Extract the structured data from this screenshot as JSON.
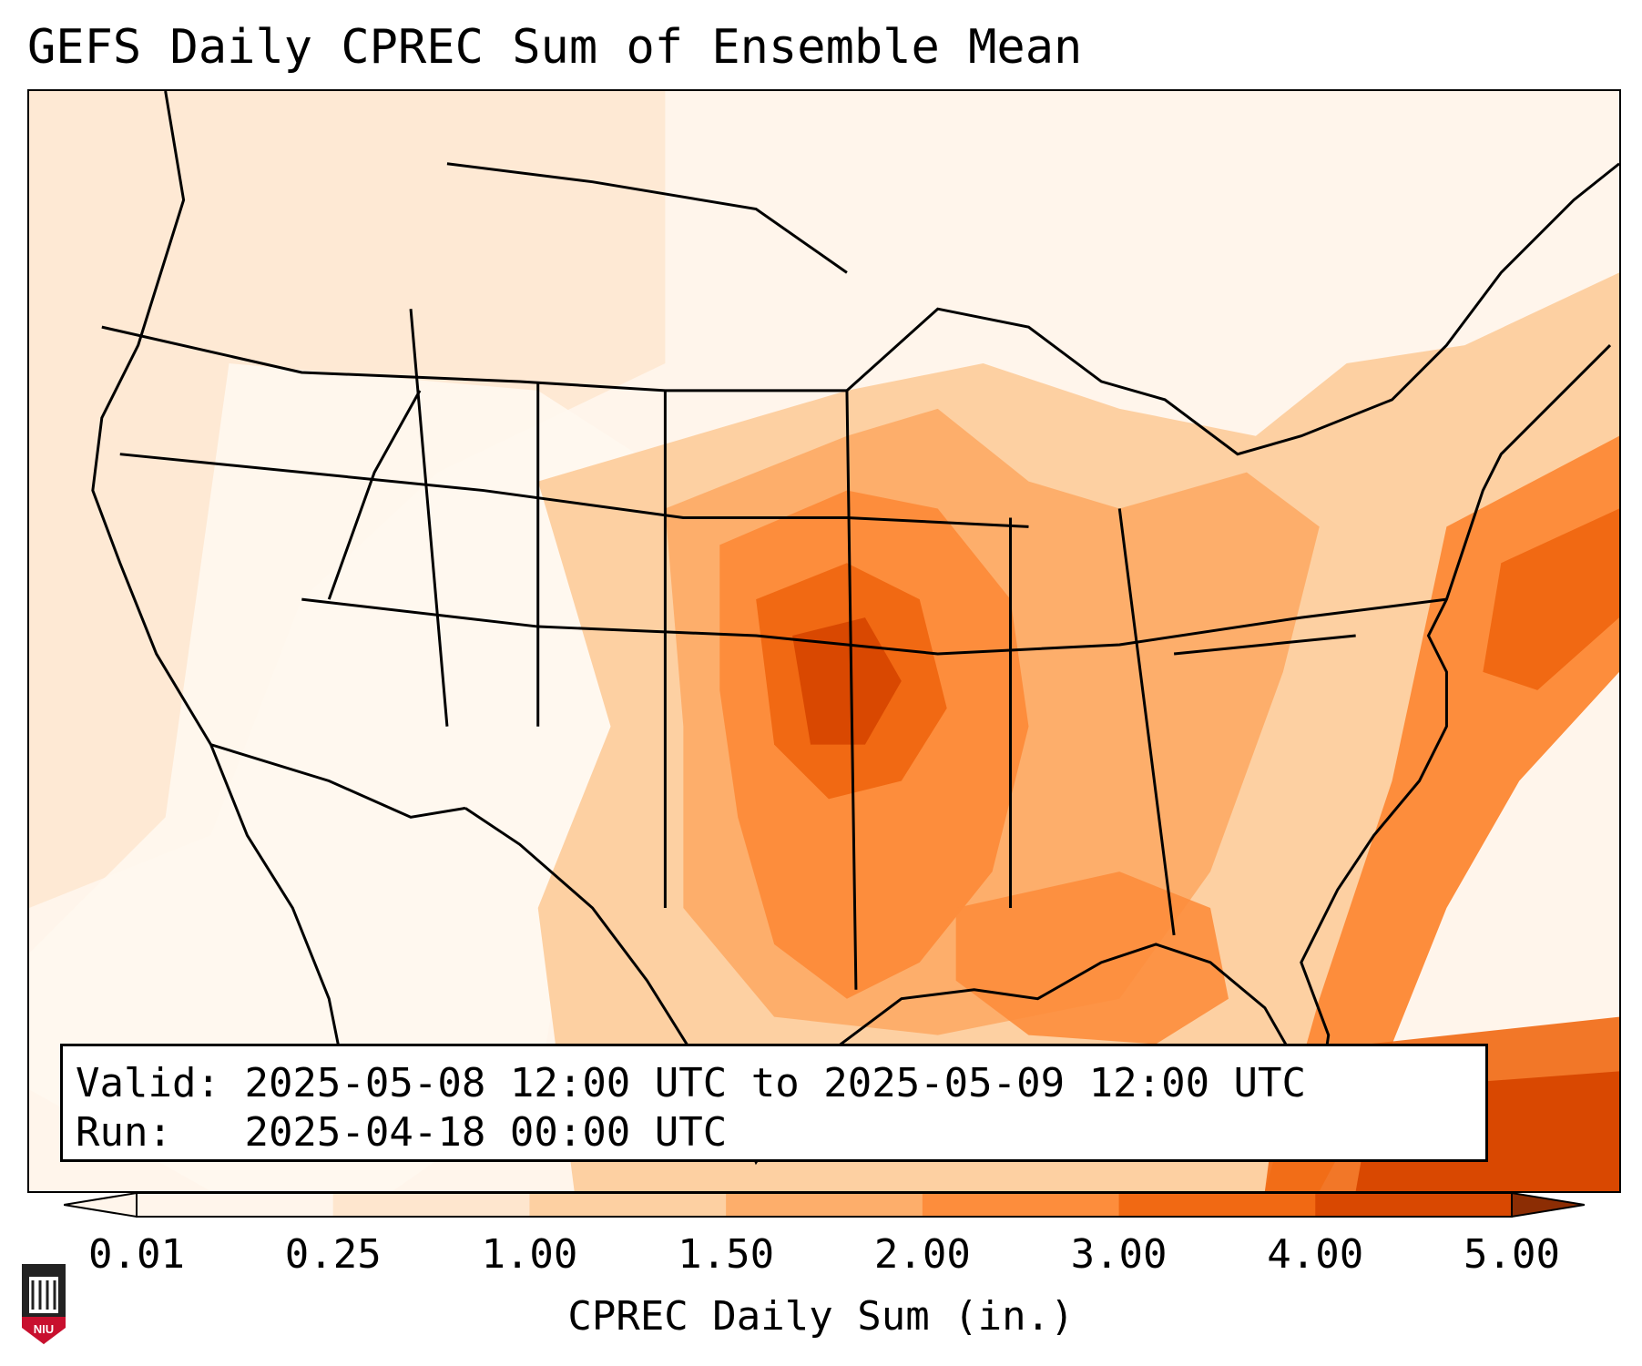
{
  "title": "GEFS Daily CPREC Sum of Ensemble Mean",
  "info": {
    "valid_label": "Valid:",
    "valid_value": "2025-05-08 12:00 UTC to 2025-05-09 12:00 UTC",
    "run_label": "Run:",
    "run_value": "2025-04-18 00:00 UTC"
  },
  "colorbar": {
    "label": "CPREC Daily Sum (in.)",
    "ticks": [
      "0.01",
      "0.25",
      "1.00",
      "1.50",
      "2.00",
      "3.00",
      "4.00",
      "5.00"
    ],
    "colors": [
      "#fff5eb",
      "#fee6ce",
      "#fdd0a2",
      "#fdae6b",
      "#fd8d3c",
      "#f16913",
      "#d94801",
      "#8c2d04"
    ]
  },
  "logo": {
    "text": "NIU",
    "colors": {
      "shield": "#c8102e",
      "building": "#222222"
    }
  }
}
